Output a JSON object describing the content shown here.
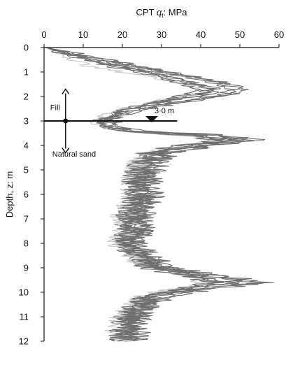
{
  "chart_data": {
    "type": "line",
    "title": "",
    "xlabel_prefix": "CPT ",
    "xlabel_var": "q",
    "xlabel_sub": "t",
    "xlabel_suffix": ": MPa",
    "ylabel": "Depth, z: m",
    "xlim": [
      0,
      60
    ],
    "ylim": [
      0,
      12
    ],
    "x_ticks": [
      0,
      10,
      20,
      30,
      40,
      50,
      60
    ],
    "y_ticks": [
      0,
      1,
      2,
      3,
      4,
      5,
      6,
      7,
      8,
      9,
      10,
      11,
      12
    ],
    "x_axis_position": "top",
    "y_inverted": true,
    "grid": false,
    "line_color": "#6f6f6f",
    "light_color": "#c8c8c8",
    "annotations": {
      "fill_label": "Fill",
      "natural_label": "Natural sand",
      "water_table_label": "3·0 m",
      "water_table_depth": 3.0,
      "interface_depth": 3.0,
      "interface_x_end": 34,
      "marker_x": 5.5,
      "arrow_up_to_depth": 1.7,
      "arrow_down_to_depth": 4.3,
      "water_table_marker_x": 27.5
    },
    "profile": {
      "depth": [
        0,
        0.2,
        0.5,
        0.8,
        1.1,
        1.4,
        1.7,
        1.9,
        2.2,
        2.5,
        2.8,
        3.0,
        3.2,
        3.4,
        3.6,
        3.8,
        4.0,
        4.3,
        4.6,
        5.0,
        5.5,
        6.0,
        6.5,
        7.0,
        7.5,
        8.0,
        8.5,
        9.0,
        9.3,
        9.6,
        9.9,
        10.2,
        10.6,
        11.0,
        11.5,
        12.0
      ],
      "series": [
        {
          "values": [
            0.5,
            6,
            15,
            24,
            33,
            42,
            48,
            46,
            35,
            24,
            18,
            16,
            17,
            22,
            44,
            52,
            40,
            30,
            28,
            26,
            25,
            26,
            24,
            23,
            24,
            22,
            25,
            30,
            42,
            50,
            38,
            28,
            25,
            23,
            22,
            21
          ]
        },
        {
          "values": [
            0.5,
            5,
            14,
            22,
            30,
            38,
            44,
            42,
            32,
            22,
            17,
            15,
            16,
            20,
            40,
            48,
            38,
            28,
            26,
            25,
            24,
            25,
            23,
            22,
            23,
            21,
            24,
            28,
            38,
            46,
            36,
            27,
            24,
            22,
            21,
            20
          ]
        },
        {
          "values": [
            0.5,
            4,
            12,
            20,
            28,
            36,
            42,
            40,
            30,
            21,
            16,
            14,
            15,
            19,
            38,
            46,
            36,
            27,
            25,
            24,
            23,
            24,
            22,
            21,
            22,
            20,
            23,
            27,
            36,
            44,
            34,
            26,
            23,
            21,
            20,
            19
          ]
        },
        {
          "values": [
            0.5,
            6,
            16,
            25,
            34,
            44,
            50,
            48,
            36,
            25,
            19,
            17,
            18,
            23,
            46,
            55,
            42,
            31,
            29,
            27,
            26,
            27,
            25,
            24,
            25,
            23,
            26,
            31,
            44,
            54,
            40,
            29,
            26,
            24,
            23,
            22
          ]
        },
        {
          "values": [
            0.5,
            3,
            8,
            12,
            24,
            34,
            40,
            38,
            28,
            20,
            15,
            13,
            14,
            18,
            36,
            44,
            34,
            26,
            24,
            23,
            22,
            23,
            21,
            20,
            21,
            19,
            22,
            26,
            34,
            42,
            32,
            25,
            22,
            20,
            19,
            18
          ]
        },
        {
          "values": [
            0.5,
            5,
            13,
            21,
            29,
            37,
            43,
            41,
            31,
            22,
            17,
            15,
            16,
            21,
            41,
            50,
            39,
            29,
            27,
            26,
            25,
            25,
            23,
            22,
            23,
            21,
            24,
            29,
            40,
            48,
            37,
            27,
            24,
            22,
            21,
            20
          ]
        },
        {
          "values": [
            0.5,
            4,
            11,
            18,
            26,
            34,
            39,
            37,
            29,
            21,
            16,
            14,
            15,
            18,
            37,
            45,
            35,
            27,
            25,
            24,
            23,
            24,
            22,
            21,
            22,
            20,
            23,
            27,
            35,
            43,
            33,
            26,
            23,
            21,
            20,
            19
          ]
        },
        {
          "values": [
            0.5,
            7,
            17,
            26,
            35,
            45,
            51,
            49,
            37,
            26,
            20,
            18,
            19,
            24,
            47,
            56,
            43,
            32,
            30,
            28,
            27,
            28,
            26,
            25,
            26,
            24,
            27,
            32,
            45,
            56,
            41,
            30,
            27,
            25,
            24,
            23
          ]
        }
      ]
    }
  }
}
